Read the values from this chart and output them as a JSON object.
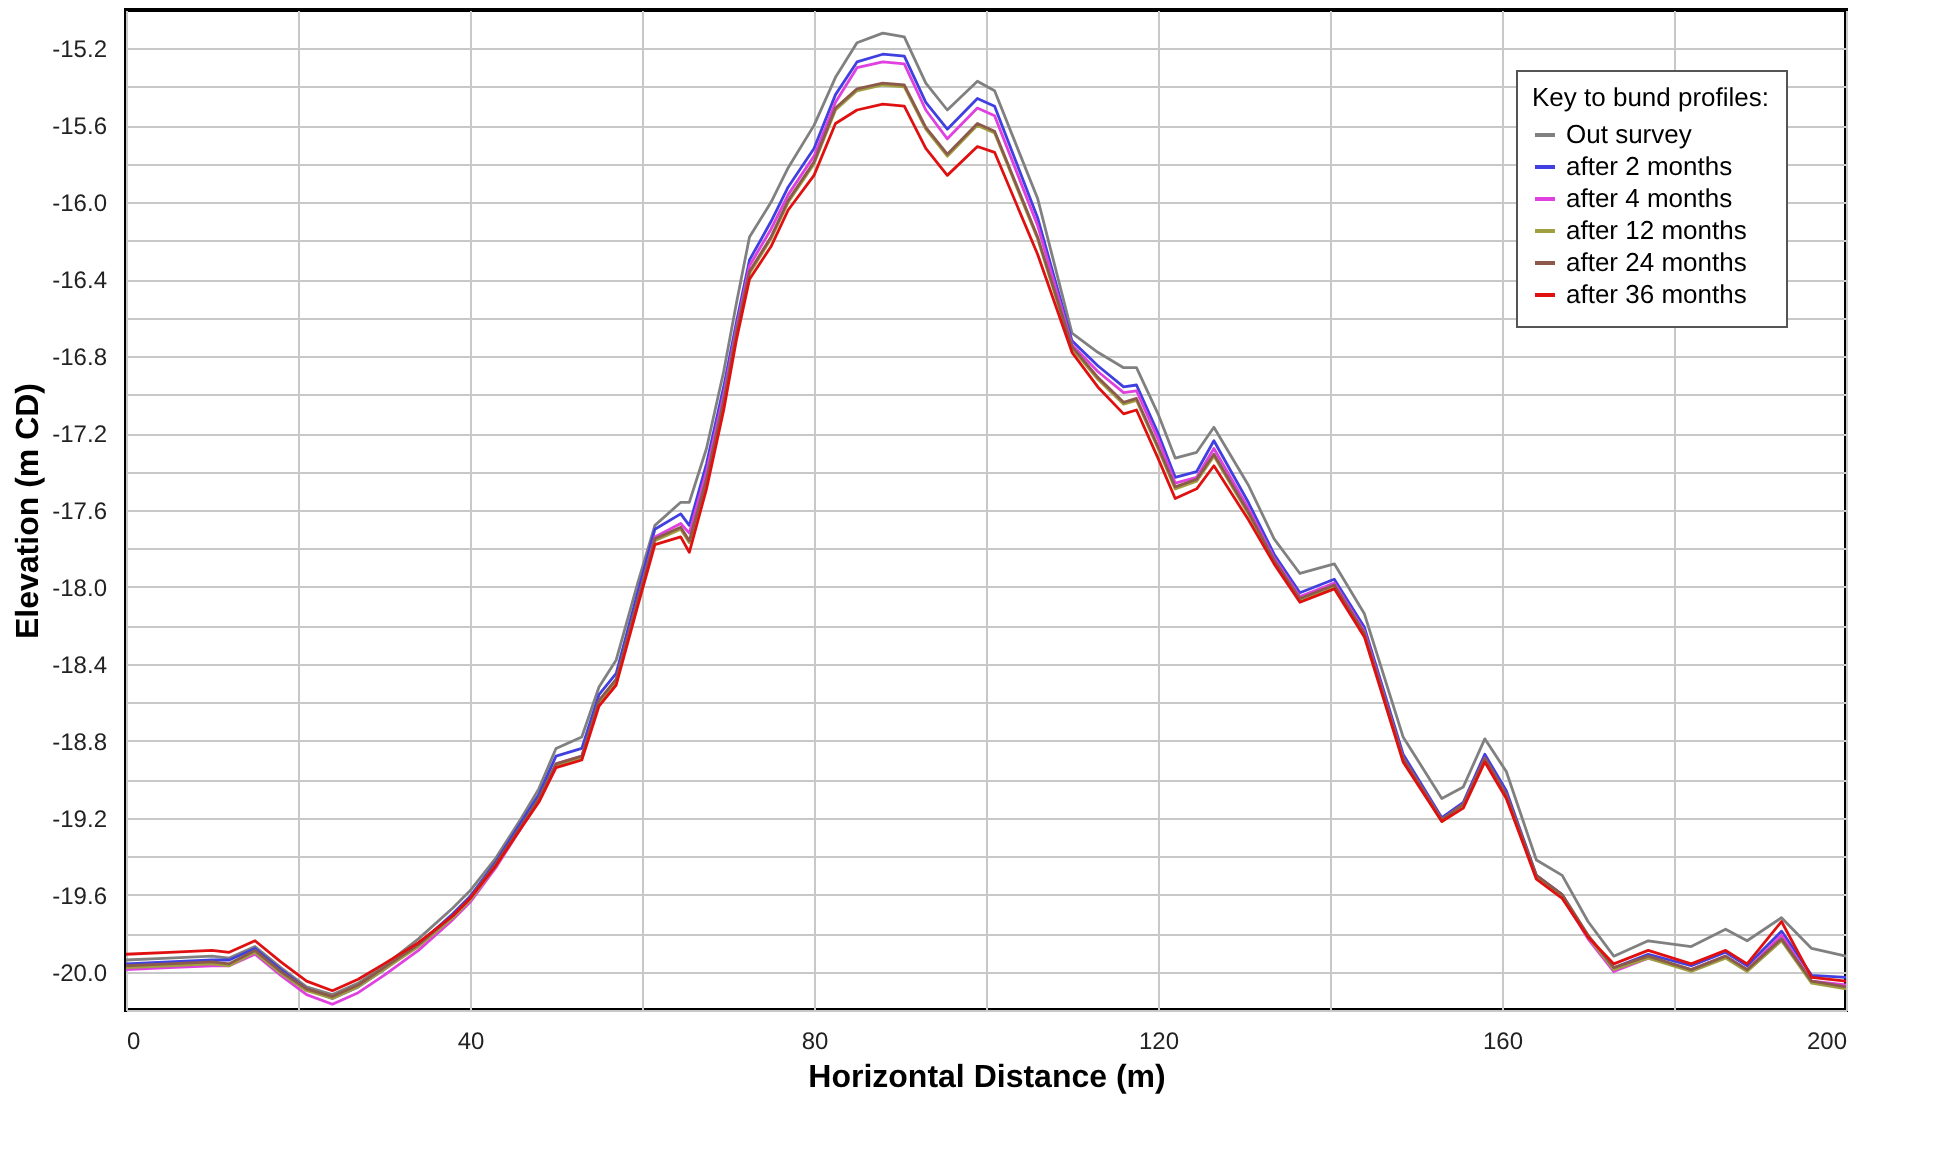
{
  "chart_data": {
    "type": "line",
    "xlabel": "Horizontal Distance (m)",
    "ylabel": "Elevation (m CD)",
    "legend_title": "Key to bund profiles:",
    "legend": "top right",
    "grid": true,
    "line_style": "solid",
    "marker": "none",
    "xlim": [
      0,
      200
    ],
    "ylim": [
      -20.2,
      -15.0
    ],
    "xticks": [
      0,
      {
        "value": 20,
        "label": null
      },
      40,
      {
        "value": 60,
        "label": null
      },
      80,
      {
        "value": 100,
        "label": null
      },
      120,
      {
        "value": 140,
        "label": null
      },
      160,
      {
        "value": 180,
        "label": null
      },
      200
    ],
    "yticks": [
      {
        "value": -20.2,
        "label": null
      },
      {
        "value": -20.0,
        "label": "-20.0"
      },
      {
        "value": -19.8,
        "label": null
      },
      -19.6,
      {
        "value": -19.4,
        "label": null
      },
      -19.2,
      {
        "value": -19.0,
        "label": null
      },
      -18.8,
      {
        "value": -18.6,
        "label": null
      },
      -18.4,
      {
        "value": -18.2,
        "label": null
      },
      {
        "value": -18.0,
        "label": "-18.0"
      },
      {
        "value": -17.8,
        "label": null
      },
      -17.6,
      {
        "value": -17.4,
        "label": null
      },
      -17.2,
      {
        "value": -17.0,
        "label": null
      },
      -16.8,
      {
        "value": -16.6,
        "label": null
      },
      -16.4,
      {
        "value": -16.2,
        "label": null
      },
      {
        "value": -16.0,
        "label": "-16.0"
      },
      {
        "value": -15.8,
        "label": null
      },
      -15.6,
      {
        "value": -15.4,
        "label": null
      },
      -15.2
    ],
    "x": [
      0,
      5,
      10,
      12,
      15,
      18,
      21,
      24,
      27,
      30,
      34,
      38,
      40,
      43,
      46,
      48,
      50,
      53,
      55,
      57,
      59.5,
      61.5,
      64.5,
      65.5,
      67.5,
      69.5,
      71,
      72.5,
      75,
      77,
      80,
      82.5,
      85,
      88,
      90.5,
      93,
      95.5,
      99,
      101,
      106,
      110,
      113,
      116,
      117.5,
      120,
      122,
      124.5,
      126.5,
      130.5,
      133.5,
      136.5,
      140.5,
      144,
      148.5,
      153,
      155.5,
      158,
      160.5,
      164,
      167,
      170,
      173,
      177,
      182,
      186,
      188.5,
      192.5,
      196,
      200
    ],
    "series": [
      {
        "name": "Out survey",
        "color": "#808080",
        "values": [
          -19.94,
          -19.93,
          -19.92,
          -19.93,
          -19.87,
          -19.98,
          -20.08,
          -20.12,
          -20.06,
          -19.97,
          -19.83,
          -19.67,
          -19.58,
          -19.41,
          -19.2,
          -19.05,
          -18.84,
          -18.78,
          -18.52,
          -18.38,
          -17.98,
          -17.68,
          -17.56,
          -17.56,
          -17.28,
          -16.88,
          -16.52,
          -16.18,
          -16.0,
          -15.82,
          -15.6,
          -15.35,
          -15.17,
          -15.12,
          -15.14,
          -15.38,
          -15.52,
          -15.37,
          -15.42,
          -15.98,
          -16.68,
          -16.78,
          -16.86,
          -16.86,
          -17.1,
          -17.33,
          -17.3,
          -17.17,
          -17.47,
          -17.75,
          -17.93,
          -17.88,
          -18.14,
          -18.78,
          -19.1,
          -19.04,
          -18.79,
          -18.96,
          -19.42,
          -19.5,
          -19.74,
          -19.92,
          -19.84,
          -19.87,
          -19.78,
          -19.84,
          -19.72,
          -19.88,
          -19.92
        ]
      },
      {
        "name": "after 2 months",
        "color": "#4040e0",
        "values": [
          -19.96,
          -19.95,
          -19.94,
          -19.94,
          -19.88,
          -19.99,
          -20.09,
          -20.14,
          -20.08,
          -19.99,
          -19.86,
          -19.7,
          -19.61,
          -19.43,
          -19.22,
          -19.08,
          -18.88,
          -18.84,
          -18.56,
          -18.45,
          -18.03,
          -17.7,
          -17.62,
          -17.68,
          -17.36,
          -16.96,
          -16.62,
          -16.3,
          -16.1,
          -15.92,
          -15.72,
          -15.44,
          -15.27,
          -15.23,
          -15.24,
          -15.48,
          -15.62,
          -15.46,
          -15.5,
          -16.08,
          -16.72,
          -16.85,
          -16.96,
          -16.95,
          -17.2,
          -17.43,
          -17.4,
          -17.24,
          -17.56,
          -17.83,
          -18.03,
          -17.96,
          -18.21,
          -18.87,
          -19.2,
          -19.12,
          -18.87,
          -19.06,
          -19.5,
          -19.6,
          -19.82,
          -19.98,
          -19.91,
          -19.97,
          -19.9,
          -19.97,
          -19.79,
          -20.02,
          -20.03
        ]
      },
      {
        "name": "after 4 months",
        "color": "#e040e0",
        "values": [
          -19.99,
          -19.98,
          -19.97,
          -19.97,
          -19.91,
          -20.02,
          -20.12,
          -20.17,
          -20.11,
          -20.02,
          -19.89,
          -19.73,
          -19.64,
          -19.46,
          -19.25,
          -19.11,
          -18.92,
          -18.88,
          -18.6,
          -18.49,
          -18.07,
          -17.74,
          -17.67,
          -17.72,
          -17.4,
          -17.0,
          -16.65,
          -16.33,
          -16.14,
          -15.96,
          -15.76,
          -15.48,
          -15.3,
          -15.27,
          -15.28,
          -15.52,
          -15.67,
          -15.51,
          -15.55,
          -16.12,
          -16.74,
          -16.88,
          -16.99,
          -16.98,
          -17.23,
          -17.46,
          -17.43,
          -17.28,
          -17.59,
          -17.85,
          -18.05,
          -17.98,
          -18.23,
          -18.89,
          -19.21,
          -19.13,
          -18.89,
          -19.08,
          -19.51,
          -19.61,
          -19.83,
          -20.0,
          -19.93,
          -19.99,
          -19.92,
          -19.99,
          -19.81,
          -20.05,
          -20.07
        ]
      },
      {
        "name": "after 12 months",
        "color": "#a0a040",
        "values": [
          -19.98,
          -19.97,
          -19.96,
          -19.97,
          -19.9,
          -20.01,
          -20.1,
          -20.14,
          -20.08,
          -19.99,
          -19.87,
          -19.72,
          -19.63,
          -19.45,
          -19.25,
          -19.11,
          -18.93,
          -18.89,
          -18.6,
          -18.49,
          -18.08,
          -17.76,
          -17.7,
          -17.77,
          -17.45,
          -17.04,
          -16.68,
          -16.37,
          -16.19,
          -16.0,
          -15.8,
          -15.52,
          -15.42,
          -15.39,
          -15.4,
          -15.62,
          -15.76,
          -15.6,
          -15.64,
          -16.19,
          -16.76,
          -16.92,
          -17.05,
          -17.03,
          -17.28,
          -17.49,
          -17.45,
          -17.32,
          -17.62,
          -17.87,
          -18.07,
          -18.0,
          -18.25,
          -18.9,
          -19.22,
          -19.14,
          -18.9,
          -19.09,
          -19.51,
          -19.61,
          -19.82,
          -19.99,
          -19.93,
          -20.0,
          -19.93,
          -20.0,
          -19.84,
          -20.06,
          -20.09
        ]
      },
      {
        "name": "after 24 months",
        "color": "#8b5a4a",
        "values": [
          -19.97,
          -19.96,
          -19.95,
          -19.96,
          -19.89,
          -20.0,
          -20.09,
          -20.13,
          -20.07,
          -19.98,
          -19.86,
          -19.71,
          -19.62,
          -19.44,
          -19.24,
          -19.1,
          -18.92,
          -18.88,
          -18.59,
          -18.48,
          -18.07,
          -17.75,
          -17.69,
          -17.76,
          -17.44,
          -17.03,
          -16.67,
          -16.36,
          -16.18,
          -15.99,
          -15.79,
          -15.51,
          -15.41,
          -15.38,
          -15.39,
          -15.61,
          -15.75,
          -15.59,
          -15.63,
          -16.18,
          -16.75,
          -16.91,
          -17.04,
          -17.02,
          -17.27,
          -17.48,
          -17.44,
          -17.31,
          -17.61,
          -17.86,
          -18.06,
          -17.99,
          -18.24,
          -18.89,
          -19.21,
          -19.13,
          -18.89,
          -19.08,
          -19.5,
          -19.6,
          -19.81,
          -19.98,
          -19.92,
          -19.99,
          -19.92,
          -19.99,
          -19.83,
          -20.05,
          -20.08
        ]
      },
      {
        "name": "after 36 months",
        "color": "#e01010",
        "values": [
          -19.91,
          -19.9,
          -19.89,
          -19.9,
          -19.84,
          -19.95,
          -20.05,
          -20.1,
          -20.04,
          -19.96,
          -19.85,
          -19.71,
          -19.62,
          -19.45,
          -19.25,
          -19.12,
          -18.94,
          -18.9,
          -18.62,
          -18.51,
          -18.1,
          -17.78,
          -17.74,
          -17.82,
          -17.49,
          -17.08,
          -16.71,
          -16.4,
          -16.23,
          -16.04,
          -15.86,
          -15.59,
          -15.52,
          -15.49,
          -15.5,
          -15.72,
          -15.86,
          -15.71,
          -15.74,
          -16.27,
          -16.78,
          -16.96,
          -17.1,
          -17.08,
          -17.33,
          -17.54,
          -17.49,
          -17.37,
          -17.65,
          -17.88,
          -18.08,
          -18.01,
          -18.26,
          -18.91,
          -19.22,
          -19.15,
          -18.91,
          -19.1,
          -19.52,
          -19.62,
          -19.82,
          -19.96,
          -19.89,
          -19.96,
          -19.89,
          -19.96,
          -19.74,
          -20.03,
          -20.05
        ]
      }
    ]
  }
}
